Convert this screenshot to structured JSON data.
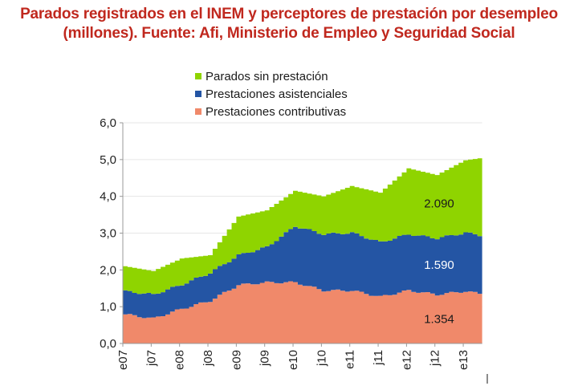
{
  "title_lines": [
    "Parados registrados en el INEM y perceptores de prestación por desempleo",
    "(millones). Fuente: Afi, Ministerio de Empleo y Seguridad Social"
  ],
  "chart_data": {
    "type": "area",
    "stacked": true,
    "title": "Parados registrados en el INEM y perceptores de prestación por desempleo (millones). Fuente: Afi, Ministerio de Empleo y Seguridad Social",
    "xlabel": "",
    "ylabel": "",
    "ylim": [
      0,
      6
    ],
    "yticks": [
      "0,0",
      "1,0",
      "2,0",
      "3,0",
      "4,0",
      "5,0",
      "6,0"
    ],
    "xtick_labels": [
      "e07",
      "j07",
      "e08",
      "j08",
      "e09",
      "j09",
      "e10",
      "j10",
      "e11",
      "j11",
      "e12",
      "j12",
      "e13"
    ],
    "x_start": "2007-01",
    "x_end": "2013-04",
    "grid": true,
    "legend_position": "top",
    "anchor_points_month_index": [
      0,
      6,
      12,
      18,
      24,
      30,
      36,
      42,
      48,
      54,
      60,
      66,
      72,
      75
    ],
    "series": [
      {
        "name": "Prestaciones contributivas",
        "color": "#f0896a",
        "values": [
          0.79,
          0.68,
          0.94,
          1.16,
          1.59,
          1.66,
          1.66,
          1.44,
          1.44,
          1.27,
          1.44,
          1.33,
          1.42,
          1.354
        ],
        "end_label": "1.354"
      },
      {
        "name": "Prestaciones asistenciales",
        "color": "#2455a4",
        "values": [
          0.63,
          0.65,
          0.66,
          0.76,
          0.81,
          0.96,
          1.53,
          1.53,
          1.57,
          1.48,
          1.53,
          1.53,
          1.59,
          1.59
        ],
        "end_label": "1.590"
      },
      {
        "name": "Parados sin prestación",
        "color": "#8fd400",
        "values": [
          0.68,
          0.64,
          0.71,
          0.48,
          1.05,
          1.0,
          0.96,
          1.03,
          1.27,
          1.35,
          1.79,
          1.72,
          1.97,
          2.09
        ],
        "end_label": "2.090"
      }
    ]
  },
  "legend": [
    {
      "label": "Parados sin prestación",
      "color": "#8fd400"
    },
    {
      "label": "Prestaciones asistenciales",
      "color": "#2455a4"
    },
    {
      "label": "Prestaciones contributivas",
      "color": "#f0896a"
    }
  ]
}
